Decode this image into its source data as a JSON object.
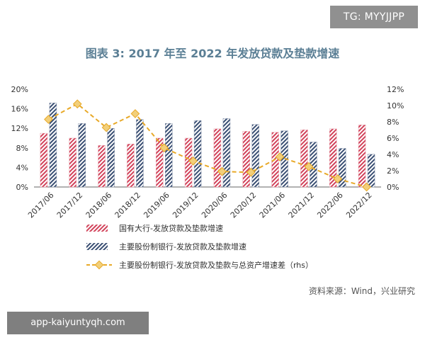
{
  "badge": "TG: MYYJJPP",
  "title": "图表 3:   2017 年至 2022 年发放贷款及垫款增速",
  "source": "资料来源：Wind，兴业研究",
  "watermark": "app-kaiyuntyqh.com",
  "colors": {
    "series1": "#d1425a",
    "series2": "#3a4f73",
    "series3": "#e8a928",
    "axis": "#666666"
  },
  "chart_data": {
    "type": "bar",
    "categories": [
      "2017/06",
      "2017/12",
      "2018/06",
      "2018/12",
      "2019/06",
      "2019/12",
      "2020/06",
      "2020/12",
      "2021/06",
      "2021/12",
      "2022/06",
      "2022/12"
    ],
    "y_left": {
      "ticks": [
        "0%",
        "4%",
        "8%",
        "12%",
        "16%",
        "20%"
      ],
      "min": 0,
      "max": 20
    },
    "y_right": {
      "ticks": [
        "0%",
        "2%",
        "4%",
        "6%",
        "8%",
        "10%",
        "12%"
      ],
      "min": 0,
      "max": 12
    },
    "series": [
      {
        "name": "国有大行-发放贷款及垫款增速",
        "kind": "bar",
        "axis": "left",
        "pattern": "diagonal-red",
        "values": [
          11.0,
          10.0,
          8.5,
          8.8,
          10.0,
          10.0,
          11.9,
          11.4,
          11.2,
          11.7,
          11.9,
          12.7
        ]
      },
      {
        "name": "主要股份制银行-发放贷款及垫款增速",
        "kind": "bar",
        "axis": "left",
        "pattern": "diagonal-navy",
        "values": [
          17.2,
          13.0,
          12.0,
          13.8,
          13.0,
          13.6,
          14.0,
          12.8,
          11.5,
          9.2,
          7.9,
          6.7
        ]
      },
      {
        "name": "主要股份制银行-发放贷款及垫款与总资产增速差（rhs）",
        "kind": "line",
        "axis": "right",
        "values": [
          8.3,
          10.2,
          7.3,
          9.0,
          4.8,
          3.2,
          1.9,
          1.8,
          3.7,
          2.5,
          1.0,
          0.0
        ]
      }
    ],
    "legend_placement": "bottom"
  }
}
